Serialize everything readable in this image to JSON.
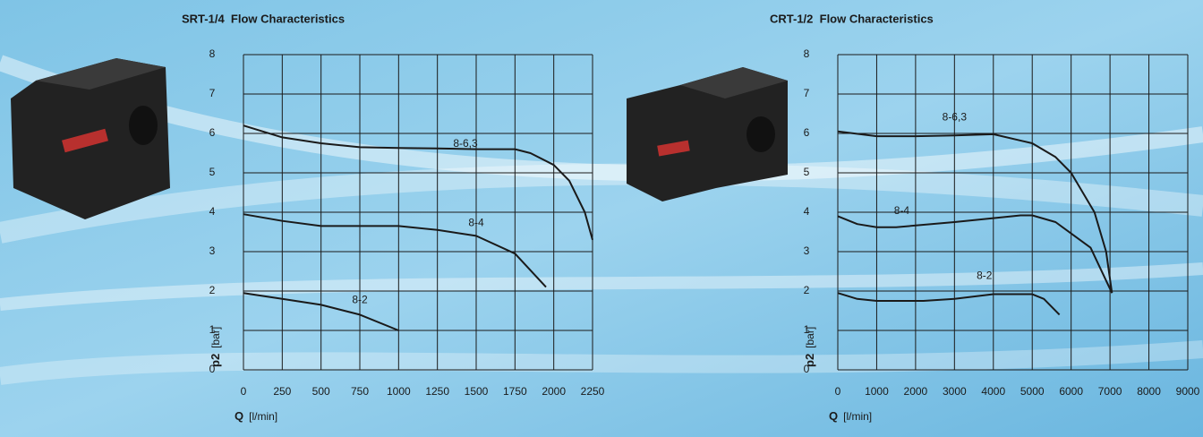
{
  "chart_data": [
    {
      "type": "line",
      "title": "SRT-1/4  Flow Characteristics",
      "xlabel": "Q",
      "xunit": "[l/min]",
      "ylabel": "p2",
      "yunit": "[bar]",
      "xlim": [
        0,
        2250
      ],
      "xticks": [
        0,
        250,
        500,
        750,
        1000,
        1250,
        1500,
        1750,
        2000,
        2250
      ],
      "ylim": [
        0,
        8
      ],
      "yticks": [
        0,
        1,
        2,
        3,
        4,
        5,
        6,
        7,
        8
      ],
      "grid": true,
      "series": [
        {
          "name": "8-6,3",
          "color": "#1a1a1a",
          "x": [
            0,
            250,
            500,
            750,
            1000,
            1250,
            1500,
            1750,
            1850,
            2000,
            2100,
            2200,
            2250
          ],
          "values": [
            6.2,
            5.9,
            5.75,
            5.65,
            5.63,
            5.62,
            5.6,
            5.6,
            5.5,
            5.2,
            4.8,
            4.0,
            3.3
          ]
        },
        {
          "name": "8-4",
          "color": "#1a1a1a",
          "x": [
            0,
            250,
            500,
            750,
            1000,
            1250,
            1500,
            1750,
            1950
          ],
          "values": [
            3.95,
            3.78,
            3.65,
            3.65,
            3.65,
            3.55,
            3.4,
            2.95,
            2.1
          ]
        },
        {
          "name": "8-2",
          "color": "#1a1a1a",
          "x": [
            0,
            250,
            500,
            750,
            1000
          ],
          "values": [
            1.95,
            1.8,
            1.65,
            1.4,
            1.0
          ]
        }
      ]
    },
    {
      "type": "line",
      "title": "CRT-1/2  Flow Characteristics",
      "xlabel": "Q",
      "xunit": "[l/min]",
      "ylabel": "p2",
      "yunit": "[bar]",
      "xlim": [
        0,
        9000
      ],
      "xticks": [
        0,
        1000,
        2000,
        3000,
        4000,
        5000,
        6000,
        7000,
        8000,
        9000
      ],
      "ylim": [
        0,
        8
      ],
      "yticks": [
        0,
        1,
        2,
        3,
        4,
        5,
        6,
        7,
        8
      ],
      "grid": true,
      "series": [
        {
          "name": "8-6,3",
          "color": "#1a1a1a",
          "x": [
            0,
            1000,
            2000,
            3000,
            4000,
            5000,
            5600,
            6000,
            6600,
            6900,
            7050
          ],
          "values": [
            6.05,
            5.93,
            5.93,
            5.95,
            5.98,
            5.75,
            5.4,
            5.0,
            4.0,
            3.0,
            1.95
          ]
        },
        {
          "name": "8-4",
          "color": "#1a1a1a",
          "x": [
            0,
            500,
            1000,
            1500,
            3000,
            4000,
            4700,
            5000,
            5600,
            6500,
            7050
          ],
          "values": [
            3.9,
            3.7,
            3.62,
            3.62,
            3.75,
            3.85,
            3.92,
            3.92,
            3.75,
            3.1,
            1.95
          ]
        },
        {
          "name": "8-2",
          "color": "#1a1a1a",
          "x": [
            0,
            500,
            1000,
            2200,
            3000,
            4000,
            5000,
            5300,
            5700
          ],
          "values": [
            1.95,
            1.8,
            1.75,
            1.75,
            1.8,
            1.92,
            1.92,
            1.8,
            1.4
          ]
        }
      ]
    }
  ]
}
